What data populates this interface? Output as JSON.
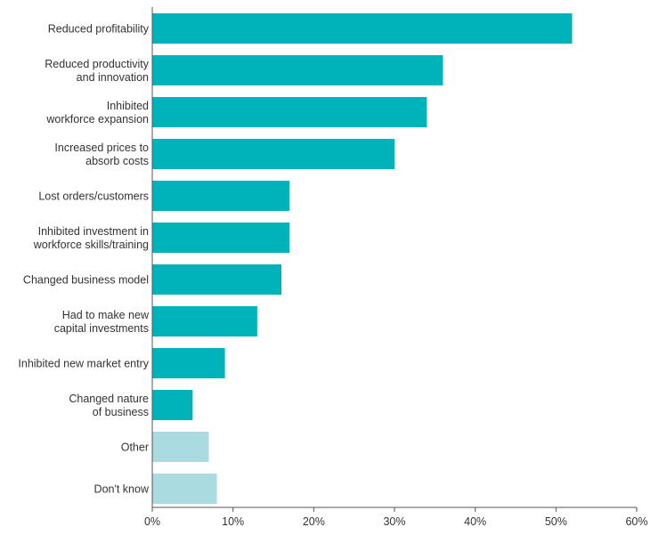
{
  "chart_data": {
    "type": "bar",
    "orientation": "horizontal",
    "categories": [
      [
        "Reduced profitability"
      ],
      [
        "Reduced productivity",
        "and innovation"
      ],
      [
        "Inhibited",
        "workforce expansion"
      ],
      [
        "Increased prices to",
        "absorb costs"
      ],
      [
        "Lost orders/customers"
      ],
      [
        "Inhibited investment in",
        "workforce skills/training"
      ],
      [
        "Changed business model"
      ],
      [
        "Had to make new",
        "capital investments"
      ],
      [
        "Inhibited new market entry"
      ],
      [
        "Changed nature",
        "of business"
      ],
      [
        "Other"
      ],
      [
        "Don't know"
      ]
    ],
    "values": [
      52,
      36,
      34,
      30,
      17,
      17,
      16,
      13,
      9,
      5,
      7,
      8
    ],
    "highlight": [
      true,
      true,
      true,
      true,
      true,
      true,
      true,
      true,
      true,
      true,
      false,
      false
    ],
    "xlim": [
      0,
      60
    ],
    "xticks": [
      0,
      10,
      20,
      30,
      40,
      50,
      60
    ],
    "xtick_labels": [
      "0%",
      "10%",
      "20%",
      "30%",
      "40%",
      "50%",
      "60%"
    ],
    "title": "",
    "xlabel": "",
    "ylabel": "",
    "grid": false,
    "legend": "none",
    "colors": {
      "primary": "#00b2ba",
      "muted": "#a9dbe0",
      "axis": "#555555",
      "text": "#333333"
    }
  }
}
